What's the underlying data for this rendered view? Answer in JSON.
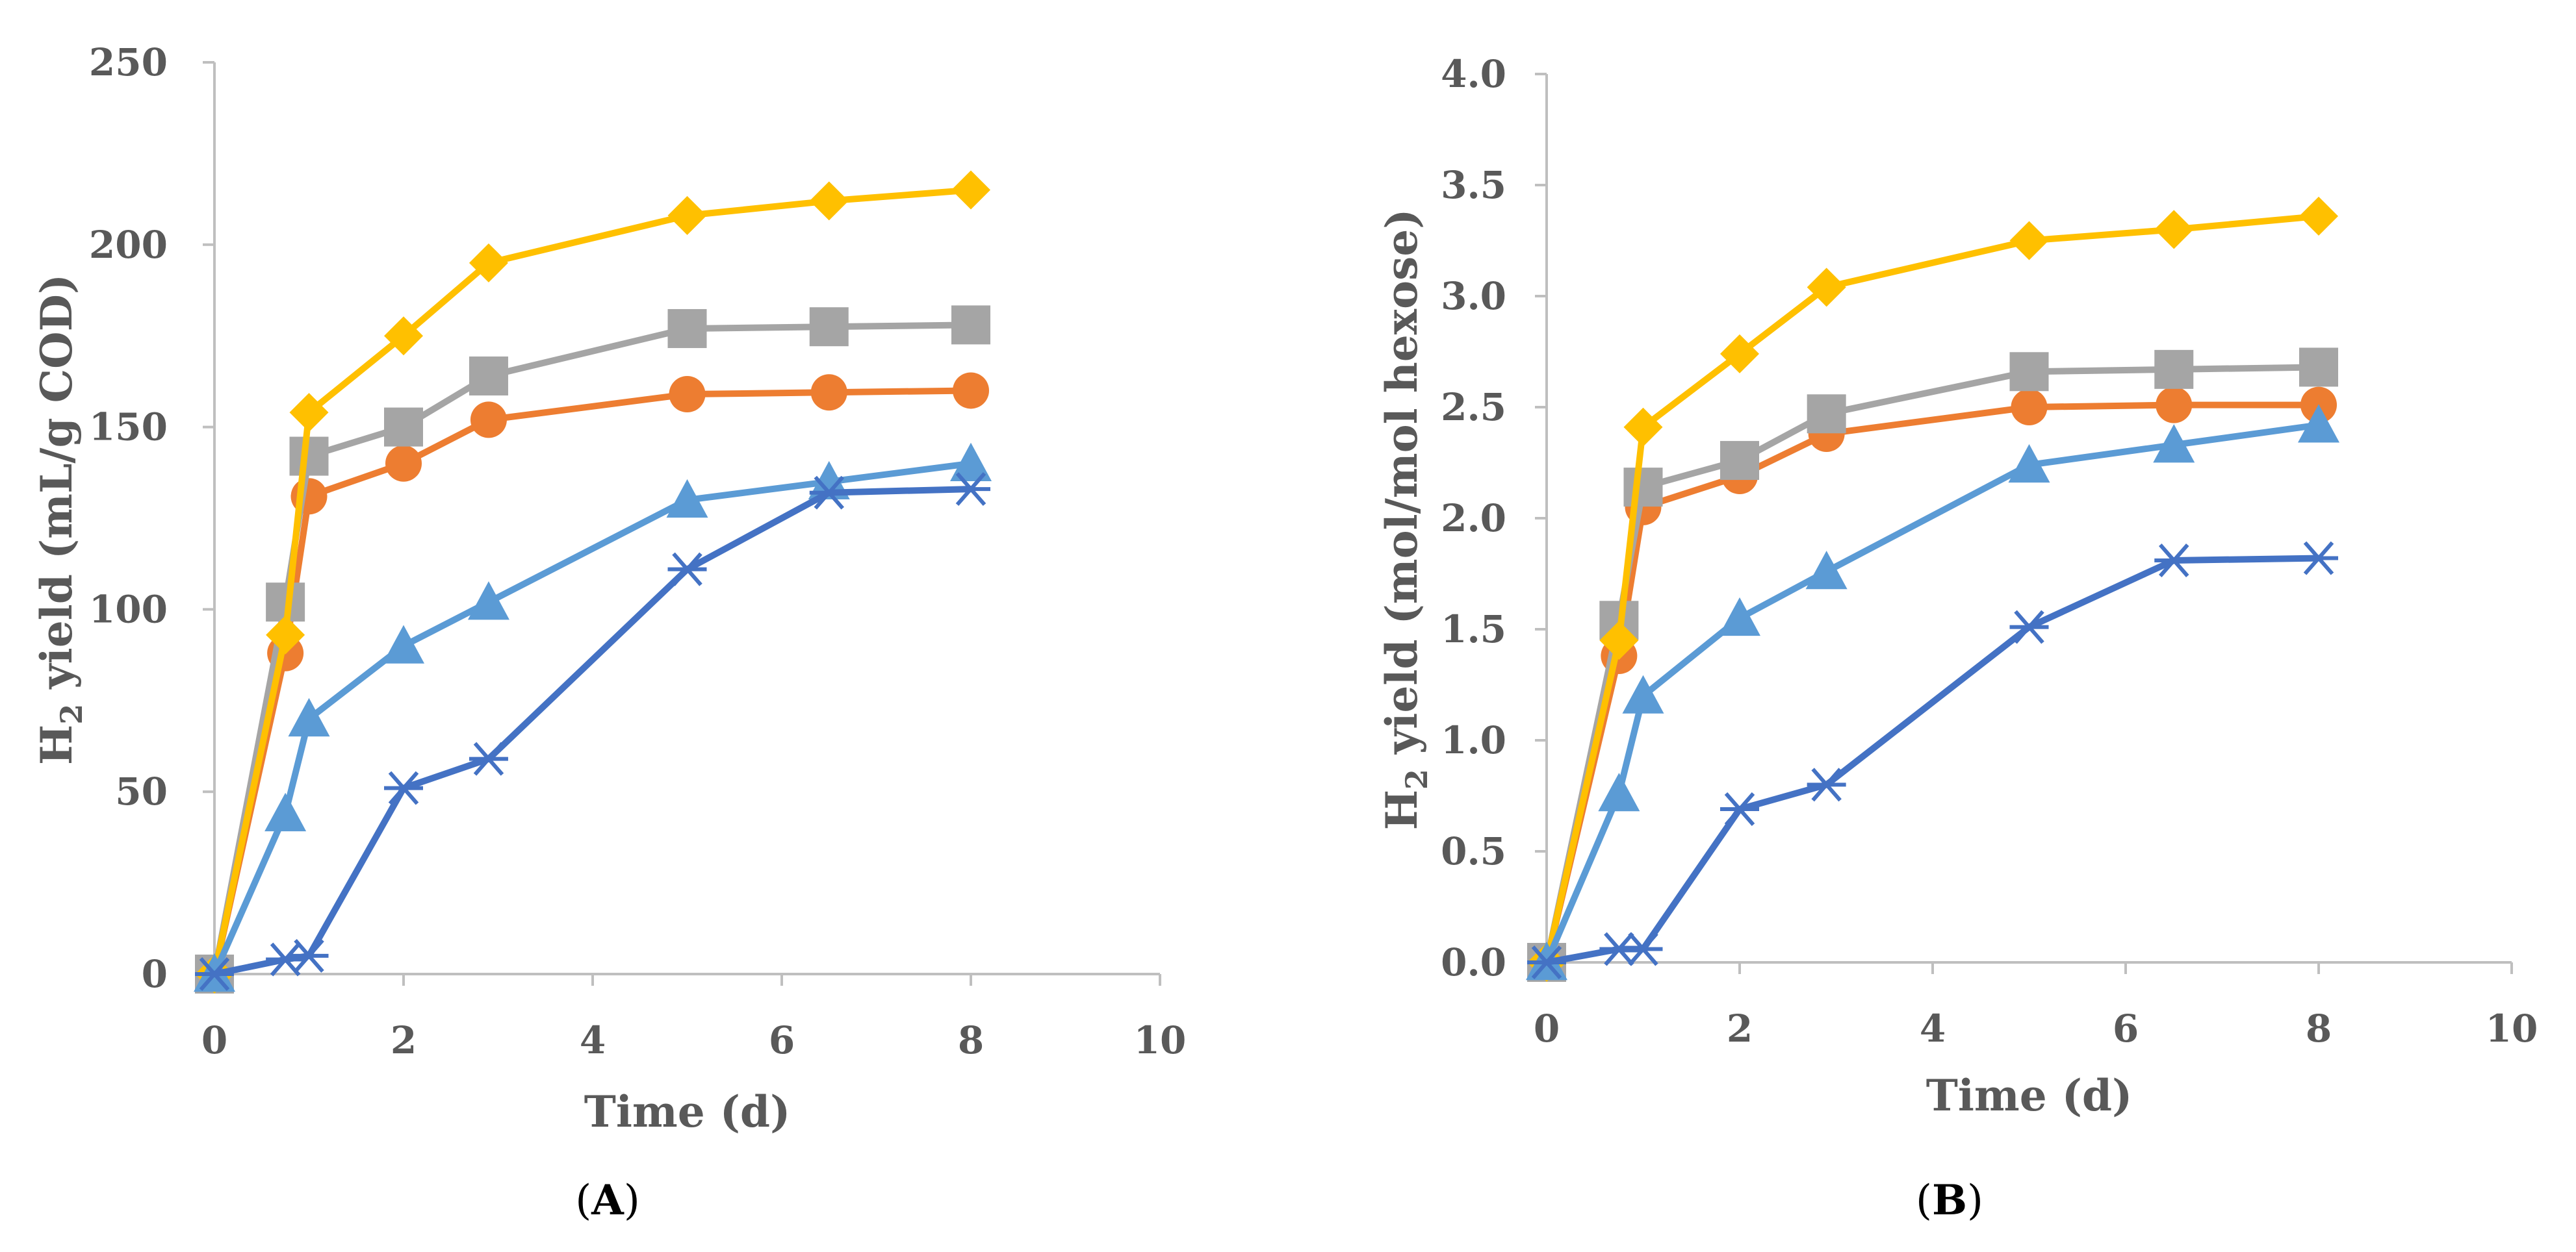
{
  "chart_data": [
    {
      "type": "line",
      "panel_label": "A",
      "xlabel": "Time (d)",
      "ylabel": {
        "prefix": "H",
        "subscript": "2",
        "suffix": " yield (mL/g COD)"
      },
      "xlim": [
        0,
        10
      ],
      "ylim": [
        0,
        250
      ],
      "xticks": [
        0,
        2,
        4,
        6,
        8,
        10
      ],
      "yticks": [
        0,
        50,
        100,
        150,
        200,
        250
      ],
      "series": [
        {
          "name": "orange-circle",
          "color": "#ED7D31",
          "marker": "circle",
          "x": [
            0,
            0.75,
            1,
            2,
            2.9,
            5,
            6.5,
            8
          ],
          "y": [
            0,
            88,
            131,
            140,
            152,
            159,
            159.5,
            160
          ]
        },
        {
          "name": "gray-square",
          "color": "#A5A5A5",
          "marker": "square",
          "x": [
            0,
            0.75,
            1,
            2,
            2.9,
            5,
            6.5,
            8
          ],
          "y": [
            0,
            102,
            142,
            150,
            164,
            177,
            177.5,
            178
          ]
        },
        {
          "name": "yellow-diamond",
          "color": "#FFC000",
          "marker": "diamond",
          "x": [
            0,
            0.75,
            1,
            2,
            2.9,
            5,
            6.5,
            8
          ],
          "y": [
            0,
            93,
            154,
            175,
            195,
            208,
            212,
            215
          ]
        },
        {
          "name": "lightblue-triangle",
          "color": "#5B9BD5",
          "marker": "triangle",
          "x": [
            0,
            0.75,
            1,
            2,
            2.9,
            5,
            6.5,
            8
          ],
          "y": [
            0,
            44,
            70,
            90,
            102,
            130,
            135,
            140
          ]
        },
        {
          "name": "darkblue-star",
          "color": "#4472C4",
          "marker": "star",
          "x": [
            0,
            0.75,
            1,
            2,
            2.9,
            5,
            6.5,
            8
          ],
          "y": [
            0,
            4,
            5,
            51,
            59,
            111,
            132,
            133
          ]
        }
      ]
    },
    {
      "type": "line",
      "panel_label": "B",
      "xlabel": "Time (d)",
      "ylabel": {
        "prefix": "H",
        "subscript": "2",
        "suffix": " yield (mol/mol hexose)"
      },
      "xlim": [
        0,
        10
      ],
      "ylim": [
        0,
        4.0
      ],
      "xticks": [
        0,
        2,
        4,
        6,
        8,
        10
      ],
      "yticks": [
        0.0,
        0.5,
        1.0,
        1.5,
        2.0,
        2.5,
        3.0,
        3.5,
        4.0
      ],
      "ytick_labels": [
        "0.0",
        "0.5",
        "1.0",
        "1.5",
        "2.0",
        "2.5",
        "3.0",
        "3.5",
        "4.0"
      ],
      "series": [
        {
          "name": "orange-circle",
          "color": "#ED7D31",
          "marker": "circle",
          "x": [
            0,
            0.75,
            1,
            2,
            2.9,
            5,
            6.5,
            8
          ],
          "y": [
            0,
            1.38,
            2.05,
            2.19,
            2.38,
            2.5,
            2.51,
            2.51
          ]
        },
        {
          "name": "gray-square",
          "color": "#A5A5A5",
          "marker": "square",
          "x": [
            0,
            0.75,
            1,
            2,
            2.9,
            5,
            6.5,
            8
          ],
          "y": [
            0,
            1.54,
            2.14,
            2.26,
            2.47,
            2.66,
            2.67,
            2.68
          ]
        },
        {
          "name": "yellow-diamond",
          "color": "#FFC000",
          "marker": "diamond",
          "x": [
            0,
            0.75,
            1,
            2,
            2.9,
            5,
            6.5,
            8
          ],
          "y": [
            0,
            1.45,
            2.41,
            2.74,
            3.04,
            3.25,
            3.3,
            3.36
          ]
        },
        {
          "name": "lightblue-triangle",
          "color": "#5B9BD5",
          "marker": "triangle",
          "x": [
            0,
            0.75,
            1,
            2,
            2.9,
            5,
            6.5,
            8
          ],
          "y": [
            0,
            0.76,
            1.2,
            1.55,
            1.76,
            2.24,
            2.33,
            2.42
          ]
        },
        {
          "name": "darkblue-star",
          "color": "#4472C4",
          "marker": "star",
          "x": [
            0,
            0.75,
            1,
            2,
            2.9,
            5,
            6.5,
            8
          ],
          "y": [
            0,
            0.06,
            0.06,
            0.69,
            0.8,
            1.51,
            1.81,
            1.82
          ]
        }
      ]
    }
  ]
}
